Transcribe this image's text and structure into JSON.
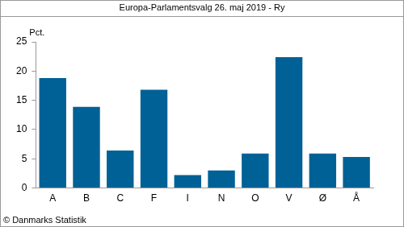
{
  "chart_data": {
    "type": "bar",
    "title": "Europa-Parlamentsvalg 26. maj 2019 - Ry",
    "y_label": "Pct.",
    "source": "© Danmarks Statistik",
    "categories": [
      "A",
      "B",
      "C",
      "F",
      "I",
      "N",
      "O",
      "V",
      "Ø",
      "Å"
    ],
    "values": [
      18.8,
      13.9,
      6.4,
      16.8,
      2.2,
      3.0,
      5.9,
      22.4,
      5.9,
      5.3
    ],
    "color": "#006196",
    "ylim": [
      0,
      25
    ],
    "yticks": [
      0,
      5,
      10,
      15,
      20,
      25
    ],
    "grid": false
  }
}
